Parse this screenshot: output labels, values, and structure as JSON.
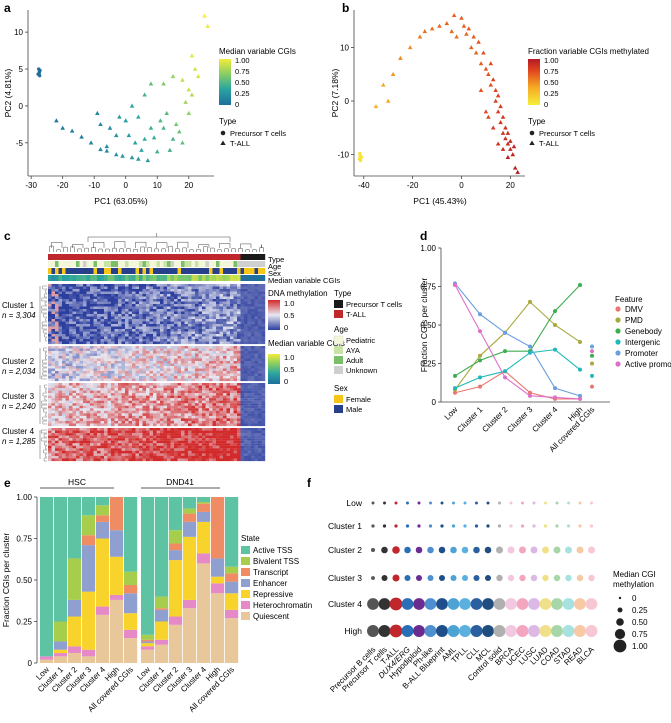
{
  "chart_data": [
    {
      "panel": "a",
      "type": "scatter",
      "xlabel": "PC1 (63.05%)",
      "ylabel": "PC2 (4.81%)",
      "xticks": [
        -30,
        -20,
        -10,
        0,
        10,
        20
      ],
      "yticks": [
        -5,
        0,
        5,
        10
      ],
      "xlim": [
        -31,
        28
      ],
      "ylim": [
        -9.5,
        13
      ],
      "legend": {
        "color_title": "Median variable CGIs",
        "color_ticks": [
          "1.00",
          "0.75",
          "0.50",
          "0.25",
          "0"
        ],
        "shape_title": "Type",
        "shape_items": [
          "Precursor T cells",
          "T-ALL"
        ]
      },
      "precursor": [
        [
          -27.6,
          5.0
        ],
        [
          -27.4,
          4.6
        ],
        [
          -27.5,
          4.4
        ],
        [
          -27.2,
          4.8
        ],
        [
          -27.8,
          4.3
        ],
        [
          -27.3,
          4.1
        ]
      ],
      "tall": [
        [
          -22,
          -2
        ],
        [
          -20,
          -3
        ],
        [
          -17,
          -3.4
        ],
        [
          -14,
          -4.2
        ],
        [
          -11,
          -5
        ],
        [
          -8,
          -5.9
        ],
        [
          -6,
          -6.1
        ],
        [
          -3,
          -6.6
        ],
        [
          -1,
          -6.8
        ],
        [
          2,
          -7
        ],
        [
          4,
          -7.2
        ],
        [
          7,
          -7.4
        ],
        [
          -9,
          -1
        ],
        [
          -8,
          -2.5
        ],
        [
          -5,
          -3
        ],
        [
          -3,
          -4
        ],
        [
          0,
          -2
        ],
        [
          1,
          -4
        ],
        [
          3,
          -5
        ],
        [
          5,
          -6
        ],
        [
          6,
          -4.5
        ],
        [
          8,
          -3
        ],
        [
          9,
          -4.3
        ],
        [
          11,
          -2
        ],
        [
          12,
          -3
        ],
        [
          13,
          -1
        ],
        [
          15,
          -4.5
        ],
        [
          14,
          -6
        ],
        [
          16,
          -2.5
        ],
        [
          17,
          -3.5
        ],
        [
          18,
          -5
        ],
        [
          20,
          -1
        ],
        [
          19,
          0.5
        ],
        [
          21,
          1.5
        ],
        [
          12,
          3
        ],
        [
          15,
          4
        ],
        [
          18,
          3.5
        ],
        [
          20,
          2.2
        ],
        [
          22,
          5
        ],
        [
          23,
          4
        ],
        [
          21,
          6.8
        ],
        [
          25,
          12.2
        ],
        [
          26,
          10.8
        ],
        [
          6,
          1.5
        ],
        [
          8,
          3
        ],
        [
          2,
          0
        ],
        [
          4,
          -1.5
        ],
        [
          -2,
          -1.5
        ],
        [
          -6,
          -5.5
        ],
        [
          10,
          -6.2
        ]
      ],
      "tall_values": [
        0.05,
        0.08,
        0.1,
        0.12,
        0.15,
        0.18,
        0.2,
        0.22,
        0.24,
        0.25,
        0.27,
        0.3,
        0.14,
        0.17,
        0.2,
        0.23,
        0.3,
        0.3,
        0.33,
        0.35,
        0.38,
        0.42,
        0.4,
        0.5,
        0.48,
        0.52,
        0.45,
        0.42,
        0.6,
        0.58,
        0.55,
        0.7,
        0.75,
        0.8,
        0.65,
        0.72,
        0.85,
        0.88,
        0.9,
        0.92,
        0.95,
        1.0,
        0.98,
        0.45,
        0.55,
        0.35,
        0.36,
        0.28,
        0.18,
        0.44
      ]
    },
    {
      "panel": "b",
      "type": "scatter",
      "xlabel": "PC1 (45.43%)",
      "ylabel": "PC2 (7.18%)",
      "xticks": [
        -40,
        -20,
        0,
        20
      ],
      "yticks": [
        -10,
        0,
        10
      ],
      "xlim": [
        -44,
        26
      ],
      "ylim": [
        -14,
        17
      ],
      "legend": {
        "color_title": "Fraction variable CGIs methylated",
        "color_ticks": [
          "1.00",
          "0.75",
          "0.50",
          "0.25",
          "0"
        ],
        "shape_title": "Type",
        "shape_items": [
          "Precursor T cells",
          "T-ALL"
        ]
      },
      "precursor": [
        [
          -41.5,
          -10.2
        ],
        [
          -41.8,
          -10.8
        ],
        [
          -41.3,
          -11.1
        ],
        [
          -41.6,
          -9.8
        ],
        [
          -41.0,
          -10.5
        ]
      ],
      "tall": [
        [
          -35,
          -1
        ],
        [
          -32,
          3
        ],
        [
          -28,
          5
        ],
        [
          -25,
          8
        ],
        [
          -21,
          10
        ],
        [
          -17,
          12
        ],
        [
          -15,
          13
        ],
        [
          -12,
          13.5
        ],
        [
          -9,
          14
        ],
        [
          -6,
          14.5
        ],
        [
          -4,
          13
        ],
        [
          -2,
          12
        ],
        [
          -3,
          16
        ],
        [
          0,
          15.5
        ],
        [
          1,
          14
        ],
        [
          2,
          12.5
        ],
        [
          3,
          13.5
        ],
        [
          5,
          12
        ],
        [
          4,
          10
        ],
        [
          6,
          9
        ],
        [
          7,
          11
        ],
        [
          8,
          7
        ],
        [
          9,
          9
        ],
        [
          10,
          6
        ],
        [
          11,
          5
        ],
        [
          12,
          7
        ],
        [
          12,
          3
        ],
        [
          13,
          4
        ],
        [
          14,
          2
        ],
        [
          14,
          0
        ],
        [
          15,
          1
        ],
        [
          15,
          -2
        ],
        [
          16,
          -1
        ],
        [
          16,
          -4
        ],
        [
          17,
          -3
        ],
        [
          17,
          -6
        ],
        [
          18,
          -5
        ],
        [
          18,
          -7
        ],
        [
          19,
          -8
        ],
        [
          19,
          -6
        ],
        [
          20,
          -9
        ],
        [
          20,
          -7.5
        ],
        [
          21,
          -10
        ],
        [
          21.5,
          -8.5
        ],
        [
          22,
          -12.5
        ],
        [
          23,
          -13.3
        ],
        [
          10,
          -2
        ],
        [
          11,
          -3
        ],
        [
          13,
          -5
        ],
        [
          15,
          -8
        ],
        [
          17,
          -9
        ],
        [
          19,
          -10.5
        ],
        [
          -30,
          0
        ],
        [
          8,
          2
        ]
      ],
      "tall_values": [
        0.35,
        0.4,
        0.45,
        0.5,
        0.5,
        0.55,
        0.6,
        0.6,
        0.62,
        0.64,
        0.62,
        0.6,
        0.65,
        0.66,
        0.65,
        0.63,
        0.68,
        0.66,
        0.64,
        0.65,
        0.7,
        0.66,
        0.72,
        0.7,
        0.7,
        0.74,
        0.72,
        0.76,
        0.74,
        0.76,
        0.78,
        0.8,
        0.8,
        0.82,
        0.84,
        0.86,
        0.86,
        0.88,
        0.9,
        0.88,
        0.92,
        0.9,
        0.94,
        0.93,
        0.96,
        1.0,
        0.74,
        0.76,
        0.8,
        0.86,
        0.9,
        0.95,
        0.38,
        0.7
      ]
    },
    {
      "panel": "c",
      "type": "heatmap",
      "annotation_rows": [
        "Type",
        "Age",
        "Sex",
        "Median variable CGIs"
      ],
      "clusters": [
        {
          "name": "Cluster 1",
          "n": "n = 3,304",
          "level": 0.18
        },
        {
          "name": "Cluster 2",
          "n": "n = 2,034",
          "level": 0.55
        },
        {
          "name": "Cluster 3",
          "n": "n = 2,240",
          "level": 0.72
        },
        {
          "name": "Cluster 4",
          "n": "n = 1,285",
          "level": 0.93
        }
      ],
      "legend": {
        "methylation_title": "DNA methylation",
        "methylation_ticks": [
          "1.0",
          "0.5",
          "0"
        ],
        "type_title": "Type",
        "type_items": [
          {
            "label": "Precursor T cells",
            "color": "#1a1a1a"
          },
          {
            "label": "T-ALL",
            "color": "#c0272d"
          }
        ],
        "age_title": "Age",
        "age_items": [
          {
            "label": "Pediatric",
            "color": "#f3f6d9"
          },
          {
            "label": "AYA",
            "color": "#c8e3a3"
          },
          {
            "label": "Adult",
            "color": "#7bbf6a"
          },
          {
            "label": "Unknown",
            "color": "#cfcfcf"
          }
        ],
        "median_title": "Median variable CGIs",
        "median_ticks": [
          "1.0",
          "0.5",
          "0"
        ],
        "sex_title": "Sex",
        "sex_items": [
          {
            "label": "Female",
            "color": "#f5c518"
          },
          {
            "label": "Male",
            "color": "#27408b"
          }
        ]
      }
    },
    {
      "panel": "d",
      "type": "line",
      "ylabel": "Fraction CGIs per cluster",
      "ylim": [
        0,
        1.0
      ],
      "yticks": [
        "0",
        "0.25",
        "0.50",
        "0.75",
        "1.00"
      ],
      "categories": [
        "Low",
        "Cluster 1",
        "Cluster 2",
        "Cluster 3",
        "Cluster 4",
        "High",
        "All covered CGIs"
      ],
      "legend_title": "Feature",
      "series": [
        {
          "name": "DMV",
          "color": "#e9776f",
          "values": [
            0.06,
            0.1,
            0.2,
            0.06,
            0.02,
            0.02,
            0.1
          ]
        },
        {
          "name": "PMD",
          "color": "#a9a83c",
          "values": [
            0.08,
            0.3,
            0.45,
            0.65,
            0.5,
            0.39,
            0.25
          ]
        },
        {
          "name": "Genebody",
          "color": "#3fad4f",
          "values": [
            0.17,
            0.27,
            0.33,
            0.33,
            0.59,
            0.76,
            0.3
          ]
        },
        {
          "name": "Intergenic",
          "color": "#1fb8b8",
          "values": [
            0.09,
            0.16,
            0.2,
            0.32,
            0.34,
            0.21,
            0.17
          ]
        },
        {
          "name": "Promoter",
          "color": "#6a9ee0",
          "values": [
            0.77,
            0.57,
            0.45,
            0.36,
            0.09,
            0.04,
            0.36
          ]
        },
        {
          "name": "Active promoter",
          "color": "#de6fc7",
          "values": [
            0.76,
            0.46,
            0.16,
            0.04,
            0.03,
            0.02,
            0.33
          ]
        }
      ]
    },
    {
      "panel": "e",
      "type": "bar",
      "stacked": true,
      "ylabel": "Fraction CGIs per cluster",
      "yticks": [
        "0",
        "0.25",
        "0.50",
        "0.75",
        "1.00"
      ],
      "groups": [
        "HSC",
        "DND41"
      ],
      "categories": [
        "Low",
        "Cluster 1",
        "Cluster 2",
        "Cluster 3",
        "Cluster 4",
        "High",
        "All covered CGIs"
      ],
      "legend_title": "State",
      "series": [
        {
          "name": "Active TSS",
          "color": "#5dc3a3"
        },
        {
          "name": "Bivalent TSS",
          "color": "#a6cd4c"
        },
        {
          "name": "Transcript",
          "color": "#ef8c63"
        },
        {
          "name": "Enhancer",
          "color": "#8e9fd0"
        },
        {
          "name": "Repressive",
          "color": "#f7d32c"
        },
        {
          "name": "Heterochromatin",
          "color": "#e58ac6"
        },
        {
          "name": "Quiescent",
          "color": "#e8c79a"
        }
      ],
      "values_HSC": [
        [
          0.96,
          0.0,
          0.0,
          0.0,
          0.0,
          0.02,
          0.02
        ],
        [
          0.75,
          0.12,
          0.0,
          0.05,
          0.02,
          0.02,
          0.04
        ],
        [
          0.37,
          0.25,
          0.0,
          0.1,
          0.18,
          0.04,
          0.06
        ],
        [
          0.11,
          0.12,
          0.06,
          0.28,
          0.35,
          0.04,
          0.04
        ],
        [
          0.05,
          0.06,
          0.04,
          0.1,
          0.41,
          0.05,
          0.29
        ],
        [
          0.0,
          0.0,
          0.2,
          0.16,
          0.23,
          0.03,
          0.38
        ],
        [
          0.45,
          0.08,
          0.05,
          0.12,
          0.1,
          0.05,
          0.15
        ]
      ],
      "values_DND41": [
        [
          0.83,
          0.03,
          0.01,
          0.01,
          0.02,
          0.02,
          0.08
        ],
        [
          0.6,
          0.07,
          0.01,
          0.07,
          0.11,
          0.03,
          0.11
        ],
        [
          0.2,
          0.08,
          0.04,
          0.06,
          0.34,
          0.05,
          0.23
        ],
        [
          0.07,
          0.03,
          0.05,
          0.09,
          0.38,
          0.05,
          0.33
        ],
        [
          0.03,
          0.01,
          0.05,
          0.06,
          0.19,
          0.06,
          0.6
        ],
        [
          0.0,
          0.0,
          0.37,
          0.11,
          0.04,
          0.06,
          0.42
        ],
        [
          0.42,
          0.04,
          0.05,
          0.07,
          0.1,
          0.05,
          0.27
        ]
      ]
    },
    {
      "panel": "f",
      "type": "scatter",
      "rows": [
        "Low",
        "Cluster 1",
        "Cluster 2",
        "Cluster 3",
        "Cluster 4",
        "High"
      ],
      "columns": [
        "Precursor B cells",
        "Precursor T cells",
        "T-ALL",
        "DUX4/ERG",
        "Hypodiploid",
        "Ph-like",
        "B-ALL Blueprint",
        "AML",
        "TPLL",
        "CLL",
        "MCL",
        "Control solid",
        "BRCA",
        "UCEC",
        "LUSC",
        "LUAD",
        "COAD",
        "STAD",
        "READ",
        "BLCA"
      ],
      "column_colors": [
        "#555555",
        "#333333",
        "#c0272d",
        "#2a6fb5",
        "#6a2c91",
        "#4f8fd0",
        "#1f4f8b",
        "#4da3d4",
        "#5bb0e0",
        "#2a5fa0",
        "#1f4d80",
        "#b0b0b0",
        "#f2c8e0",
        "#f4a6c1",
        "#dcb8e4",
        "#f0e08a",
        "#a7d7a8",
        "#a6e3e0",
        "#f7c9a5",
        "#f8c7d4"
      ],
      "row_sizes": [
        0.05,
        0.08,
        0.4,
        0.35,
        0.9,
        0.92
      ],
      "legend_title": "Median CGI methylation",
      "legend_ticks": [
        "0",
        "0.25",
        "0.50",
        "0.75",
        "1.00"
      ]
    }
  ],
  "panels": {
    "a": "a",
    "b": "b",
    "c": "c",
    "d": "d",
    "e": "e",
    "f": "f"
  }
}
